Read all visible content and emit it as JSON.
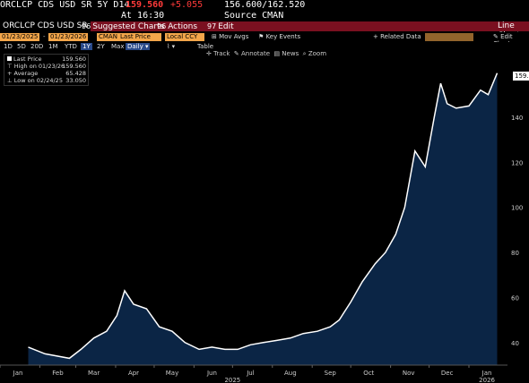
{
  "header": {
    "ticker": "ORCLCP CDS USD SR 5Y D14",
    "last": "159.560",
    "change": "+5.055",
    "range": "156.600/162.520",
    "time": "At 16:30",
    "source": "Source CMAN"
  },
  "menubar": {
    "field": "ORCLCP CDS USD SR",
    "suggested_num": "96",
    "suggested": "Suggested Charts",
    "actions_num": "96",
    "actions": "Actions",
    "edit_num": "97",
    "edit": "Edit",
    "right": "Line Chart"
  },
  "controls": {
    "start_date": "01/23/2025",
    "end_date": "01/23/2026",
    "source": "CMAN",
    "field": "Last Price",
    "currency": "Local CCY",
    "mov_avgs": "Mov Avgs",
    "key_events": "Key Events",
    "related_data": "Related Data",
    "edit_chart": "Edit Chart"
  },
  "periods": [
    "1D",
    "5D",
    "20D",
    "1M",
    "YTD",
    "1Y",
    "2Y",
    "Max"
  ],
  "period_selected": "1Y",
  "frequency": "Daily",
  "table": "Table",
  "tools": [
    "Track",
    "Annotate",
    "News",
    "Zoom"
  ],
  "legend": {
    "rows": [
      {
        "label": "Last Price",
        "value": "159.560"
      },
      {
        "label": "High on 01/23/26",
        "value": "159.560"
      },
      {
        "label": "Average",
        "value": "65.428"
      },
      {
        "label": "Low on 02/24/25",
        "value": "33.050"
      }
    ]
  },
  "last_label": "159.",
  "colors": {
    "fill": "#0b2545",
    "line": "#ffffff",
    "accent": "#f3a64a",
    "menubar": "#7a1020",
    "change": "#ff3a3a"
  },
  "chart_data": {
    "type": "area",
    "ylim": [
      30,
      165
    ],
    "yticks": [
      40,
      60,
      80,
      100,
      120,
      140
    ],
    "xticks": [
      "Jan",
      "Feb",
      "Mar",
      "Apr",
      "May",
      "Jun",
      "Jul",
      "Aug",
      "Sep",
      "Oct",
      "Nov",
      "Dec",
      "Jan"
    ],
    "year_labels": [
      "2025",
      "2026"
    ],
    "x": [
      "2025-01-23",
      "2025-02-05",
      "2025-02-24",
      "2025-03-05",
      "2025-03-15",
      "2025-03-25",
      "2025-04-02",
      "2025-04-08",
      "2025-04-15",
      "2025-04-25",
      "2025-05-05",
      "2025-05-15",
      "2025-05-25",
      "2025-06-05",
      "2025-06-15",
      "2025-06-25",
      "2025-07-05",
      "2025-07-15",
      "2025-07-25",
      "2025-08-05",
      "2025-08-15",
      "2025-08-25",
      "2025-09-05",
      "2025-09-15",
      "2025-09-22",
      "2025-10-01",
      "2025-10-10",
      "2025-10-20",
      "2025-10-28",
      "2025-11-05",
      "2025-11-12",
      "2025-11-20",
      "2025-11-28",
      "2025-12-05",
      "2025-12-10",
      "2025-12-15",
      "2025-12-22",
      "2026-01-01",
      "2026-01-10",
      "2026-01-16",
      "2026-01-23"
    ],
    "values": [
      38,
      35,
      33,
      37,
      42,
      45,
      52,
      63,
      57,
      55,
      47,
      45,
      40,
      37,
      38,
      37,
      37,
      39,
      40,
      41,
      42,
      44,
      45,
      47,
      50,
      58,
      67,
      75,
      80,
      88,
      100,
      125,
      118,
      140,
      155,
      146,
      144,
      145,
      152,
      150,
      159.56
    ]
  }
}
